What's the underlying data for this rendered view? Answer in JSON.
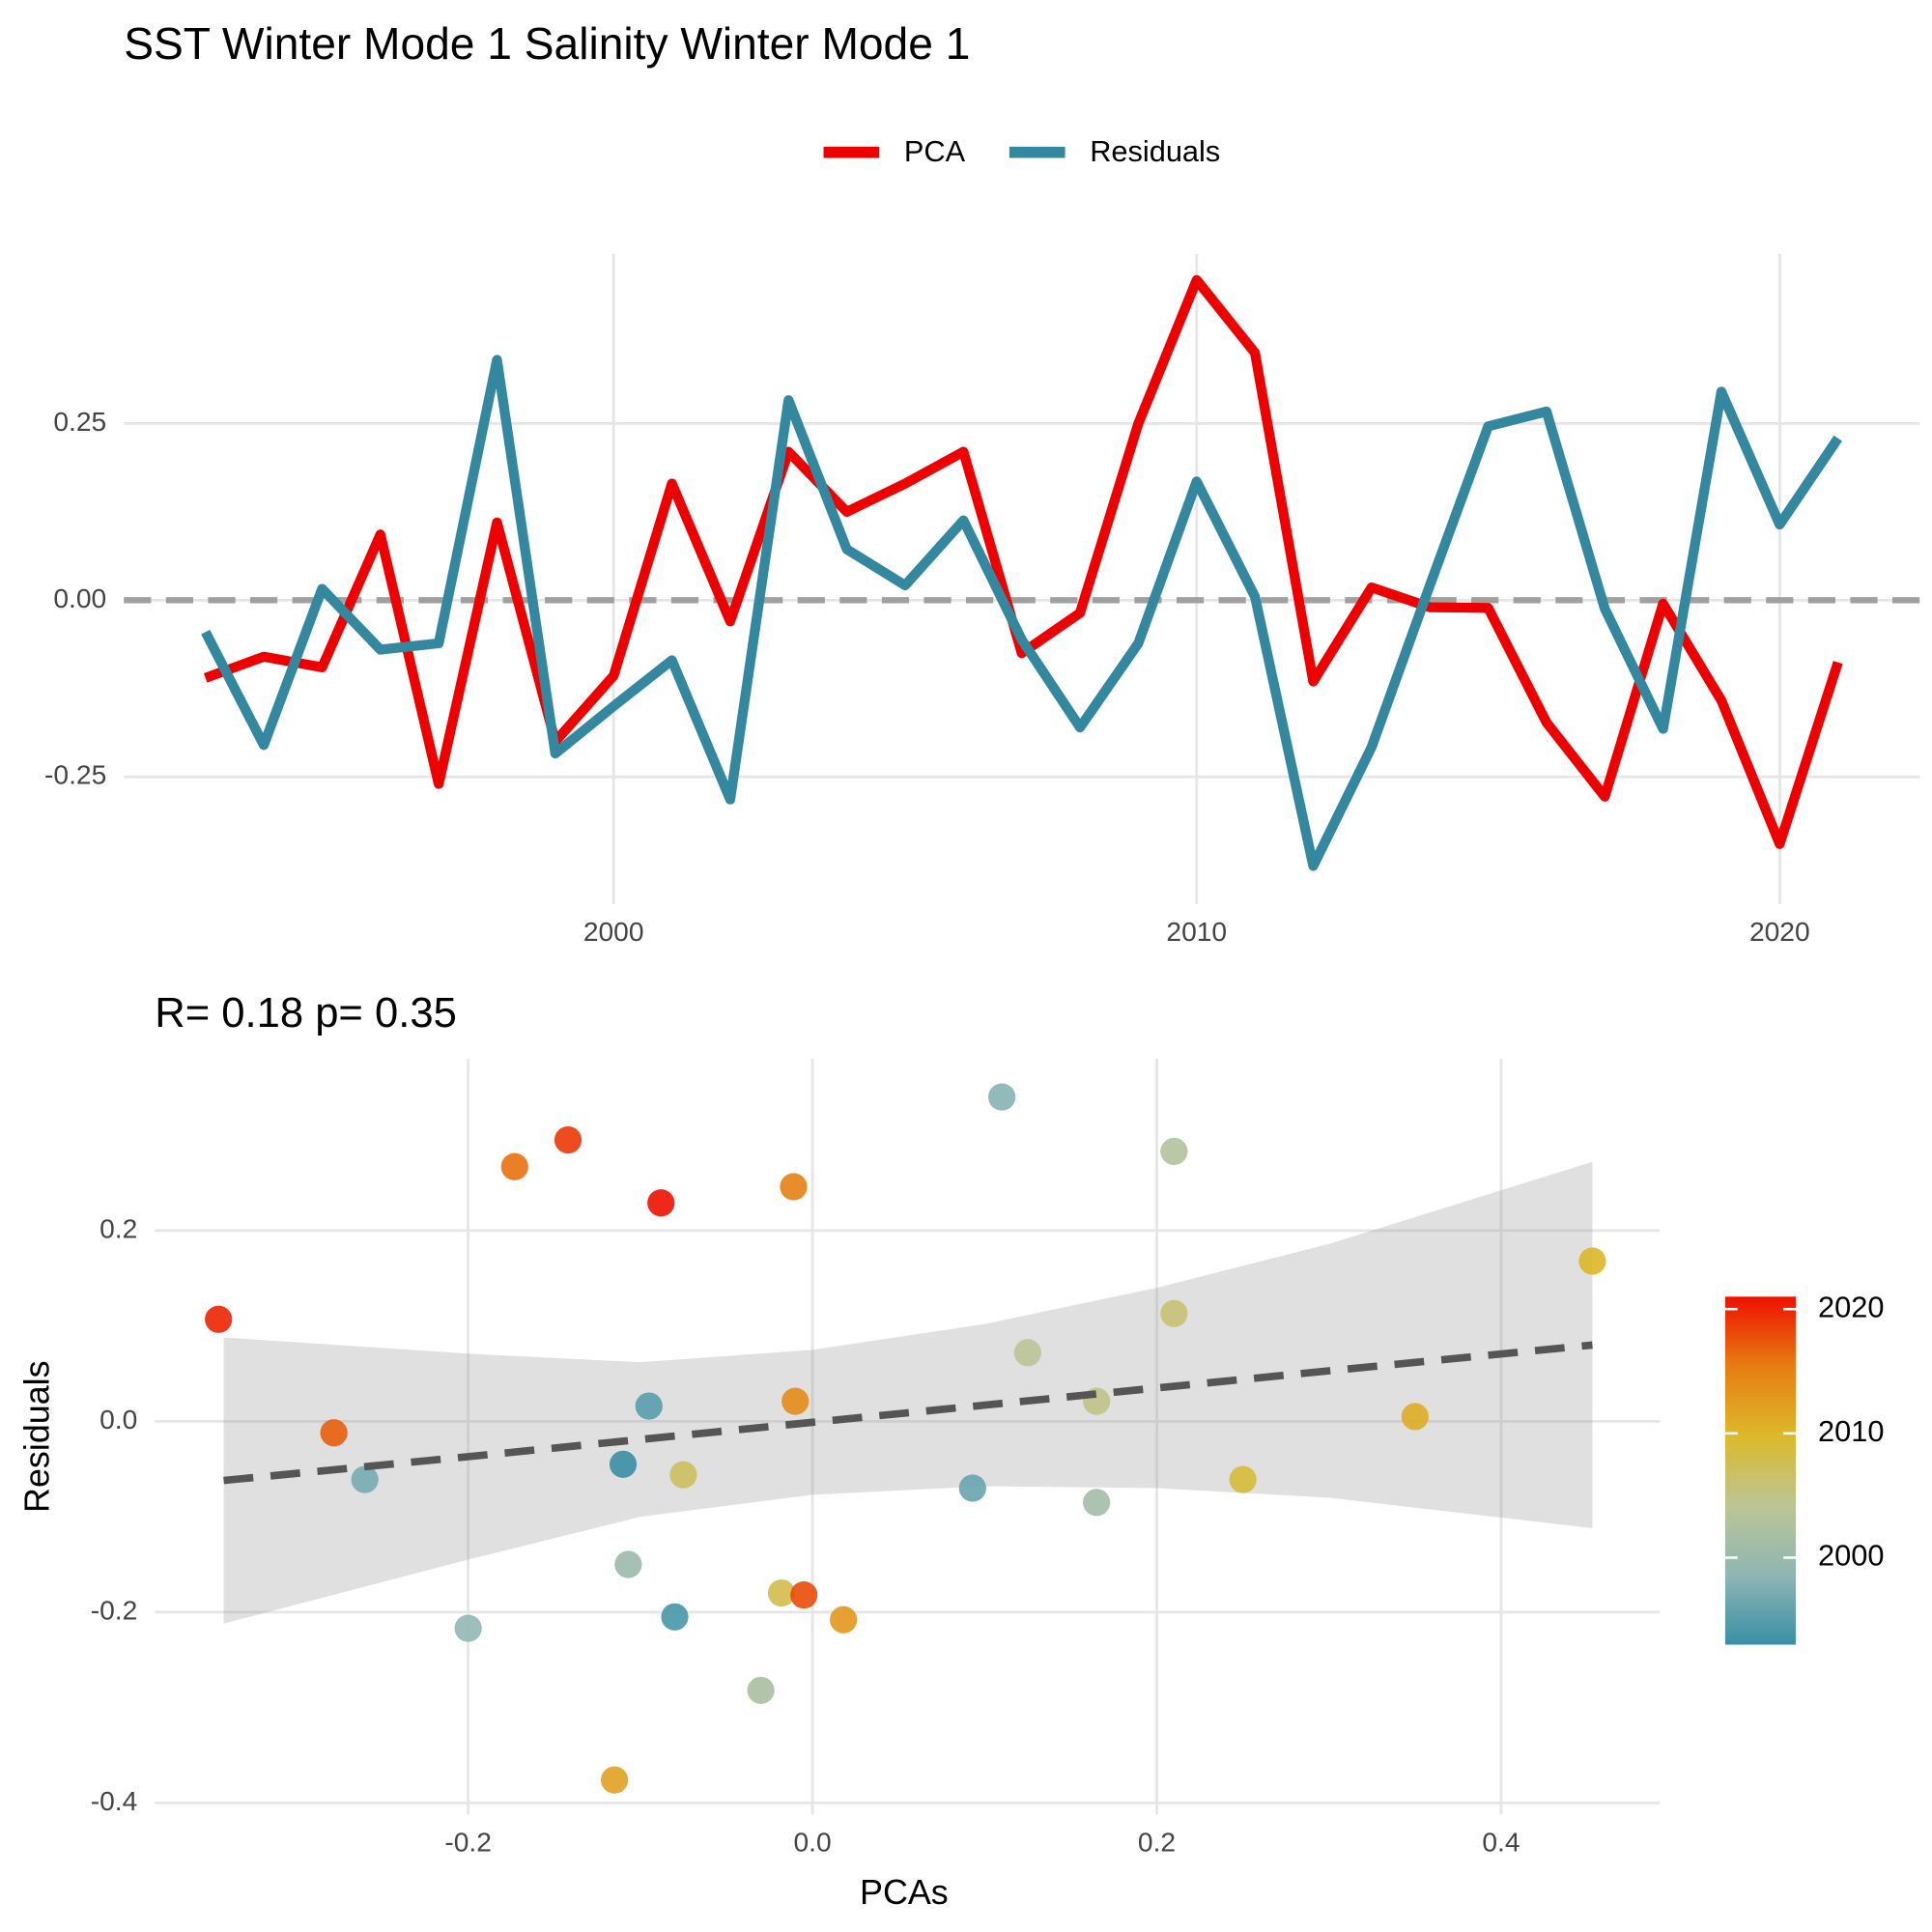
{
  "chart_data": [
    {
      "type": "line",
      "title": "SST Winter Mode 1 Salinity Winter Mode 1",
      "x": [
        1993,
        1994,
        1995,
        1996,
        1997,
        1998,
        1999,
        2000,
        2001,
        2002,
        2003,
        2004,
        2005,
        2006,
        2007,
        2008,
        2009,
        2010,
        2011,
        2012,
        2013,
        2014,
        2015,
        2016,
        2017,
        2018,
        2019,
        2020,
        2021
      ],
      "series": [
        {
          "name": "PCA",
          "color": "#ee0000",
          "values": [
            -0.11,
            -0.08,
            -0.095,
            0.093,
            -0.26,
            0.11,
            -0.2,
            -0.107,
            0.165,
            -0.03,
            0.21,
            0.125,
            0.165,
            0.21,
            -0.075,
            -0.018,
            0.25,
            0.453,
            0.35,
            -0.115,
            0.018,
            -0.01,
            -0.011,
            -0.173,
            -0.278,
            -0.005,
            -0.142,
            -0.345,
            -0.088
          ]
        },
        {
          "name": "Residuals",
          "color": "#3388a0",
          "values": [
            -0.045,
            -0.205,
            0.016,
            -0.07,
            -0.061,
            0.34,
            -0.217,
            -0.15,
            -0.085,
            -0.282,
            0.283,
            0.072,
            0.021,
            0.113,
            -0.056,
            -0.18,
            -0.061,
            0.168,
            0.005,
            -0.376,
            -0.208,
            0.021,
            0.246,
            0.267,
            -0.012,
            -0.182,
            0.295,
            0.107,
            0.229
          ]
        }
      ],
      "xlim": [
        1991.6,
        2022.4
      ],
      "xticks": [
        2000,
        2010,
        2020
      ],
      "ylim": [
        -0.43,
        0.49
      ],
      "yticks": [
        -0.25,
        {
          "value": 0,
          "label": "0.00"
        },
        0.25
      ],
      "hline": 0,
      "grid": true,
      "legend": "top"
    },
    {
      "type": "scatter",
      "title": "R= 0.18  p= 0.35",
      "xlabel": "PCAs",
      "ylabel": "Residuals",
      "x": [
        -0.11,
        -0.08,
        -0.095,
        0.093,
        -0.26,
        0.11,
        -0.2,
        -0.107,
        0.165,
        -0.03,
        0.21,
        0.125,
        0.165,
        0.21,
        -0.075,
        -0.018,
        0.25,
        0.453,
        0.35,
        -0.115,
        0.018,
        -0.01,
        -0.011,
        -0.173,
        -0.278,
        -0.005,
        -0.142,
        -0.345,
        -0.088
      ],
      "y": [
        -0.045,
        -0.205,
        0.016,
        -0.07,
        -0.061,
        0.34,
        -0.217,
        -0.15,
        -0.085,
        -0.282,
        0.283,
        0.072,
        0.021,
        0.113,
        -0.056,
        -0.18,
        -0.061,
        0.168,
        0.005,
        -0.376,
        -0.208,
        0.021,
        0.246,
        0.267,
        -0.012,
        -0.182,
        0.295,
        0.107,
        0.229
      ],
      "years": [
        1993,
        1994,
        1995,
        1996,
        1997,
        1998,
        1999,
        2000,
        2001,
        2002,
        2003,
        2004,
        2005,
        2006,
        2007,
        2008,
        2009,
        2010,
        2011,
        2012,
        2013,
        2014,
        2015,
        2016,
        2017,
        2018,
        2019,
        2020,
        2021
      ],
      "colorbar": {
        "lim": [
          1993,
          2021
        ],
        "ticks": [
          2000,
          2010,
          2020
        ],
        "colors": [
          "#3a8fa6",
          "#8fb6b4",
          "#bcc595",
          "#dcb92a",
          "#e77d12",
          "#ee1100"
        ]
      },
      "fit": {
        "x": [
          -0.342,
          -0.2,
          -0.1,
          0,
          0.1,
          0.2,
          0.3,
          0.453
        ],
        "y": [
          -0.062,
          -0.037,
          -0.019,
          -0.001,
          0.017,
          0.035,
          0.053,
          0.08
        ],
        "lower": [
          -0.212,
          -0.145,
          -0.1,
          -0.077,
          -0.068,
          -0.07,
          -0.08,
          -0.112
        ],
        "upper": [
          0.088,
          0.071,
          0.062,
          0.075,
          0.102,
          0.14,
          0.186,
          0.272
        ]
      },
      "xlim": [
        -0.382,
        0.492
      ],
      "xticks": [
        -0.2,
        {
          "value": 0,
          "label": "0.0"
        },
        0.2,
        0.4
      ],
      "ylim": [
        -0.412,
        0.38
      ],
      "yticks": [
        -0.4,
        -0.2,
        {
          "value": 0,
          "label": "0.0"
        },
        0.2
      ],
      "grid": true
    }
  ]
}
